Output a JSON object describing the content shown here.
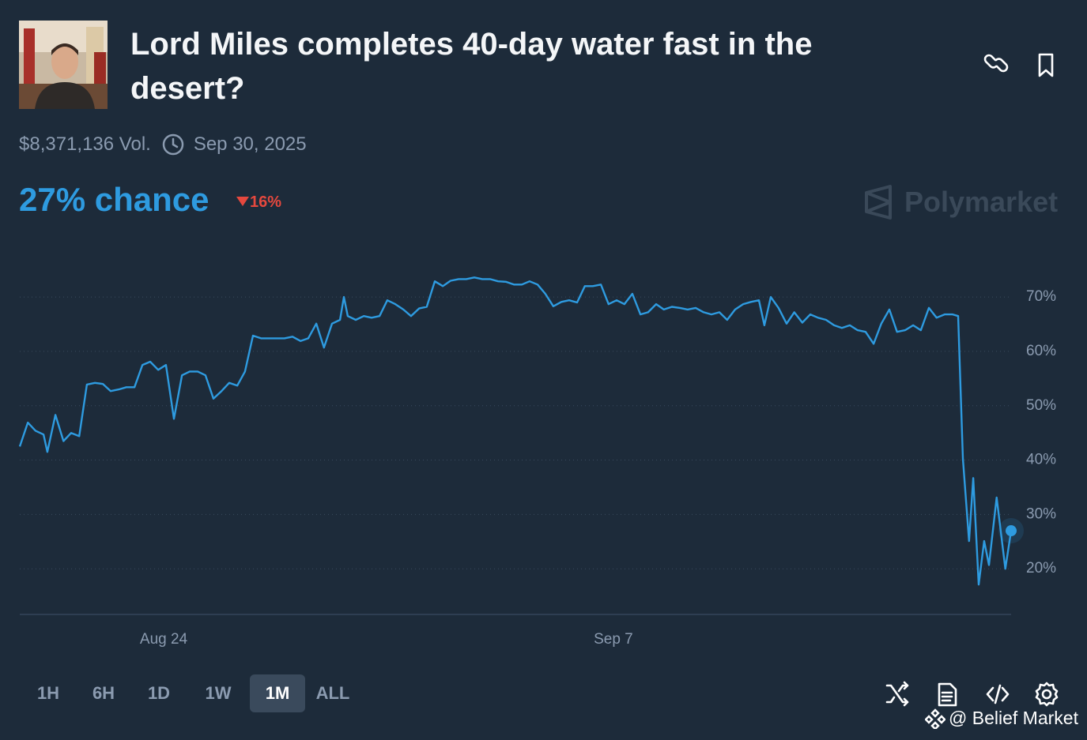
{
  "header": {
    "title": "Lord Miles completes 40-day water fast in the desert?",
    "volume": "$8,371,136 Vol.",
    "date": "Sep 30, 2025",
    "chance": "27% chance",
    "change": "16%",
    "brand": "Polymarket"
  },
  "chart_data": {
    "type": "line",
    "color": "#2e9be0",
    "grid": true,
    "x": [
      -4.48,
      -4.23,
      -3.99,
      -3.74,
      -3.62,
      -3.37,
      -3.12,
      -2.88,
      -2.63,
      -2.39,
      -2.14,
      -1.89,
      -1.65,
      -1.4,
      -1.16,
      -0.91,
      -0.66,
      -0.42,
      -0.17,
      0.07,
      0.32,
      0.57,
      0.81,
      1.06,
      1.3,
      1.55,
      1.8,
      2.04,
      2.29,
      2.53,
      2.78,
      3.03,
      3.27,
      3.52,
      3.76,
      4.01,
      4.26,
      4.5,
      4.75,
      4.99,
      5.24,
      5.49,
      5.61,
      5.73,
      5.98,
      6.23,
      6.47,
      6.72,
      6.96,
      7.21,
      7.46,
      7.7,
      7.95,
      8.19,
      8.44,
      8.69,
      8.93,
      9.18,
      9.42,
      9.67,
      9.92,
      10.16,
      10.41,
      10.65,
      10.9,
      11.15,
      11.39,
      11.64,
      11.88,
      12.13,
      12.38,
      12.62,
      12.87,
      13.11,
      13.36,
      13.61,
      13.85,
      14.1,
      14.34,
      14.59,
      14.84,
      15.08,
      15.33,
      15.57,
      15.82,
      16.07,
      16.31,
      16.56,
      16.81,
      17.05,
      17.3,
      17.54,
      17.79,
      18.04,
      18.28,
      18.53,
      18.7,
      18.9,
      19.14,
      19.39,
      19.63,
      19.88,
      20.13,
      20.37,
      20.62,
      20.87,
      21.11,
      21.36,
      21.6,
      21.85,
      22.1,
      22.34,
      22.59,
      22.83,
      23.08,
      23.33,
      23.57,
      23.82,
      24.06,
      24.31,
      24.56,
      24.73,
      24.88,
      25.07,
      25.2,
      25.37,
      25.54,
      25.69,
      25.93,
      26.2,
      26.38
    ],
    "values": [
      42.5,
      46.9,
      45.4,
      44.7,
      41.5,
      48.3,
      43.5,
      45,
      44.4,
      53.9,
      54.2,
      54,
      52.7,
      53,
      53.4,
      53.4,
      57.5,
      58.1,
      56.6,
      57.5,
      47.6,
      55.6,
      56.3,
      56.3,
      55.6,
      51.3,
      52.7,
      54.2,
      53.7,
      56.3,
      62.9,
      62.4,
      62.4,
      62.4,
      62.4,
      62.7,
      61.9,
      62.4,
      65.1,
      60.7,
      65.1,
      65.8,
      70,
      66.5,
      65.8,
      66.5,
      66.2,
      66.5,
      69.4,
      68.7,
      67.7,
      66.5,
      67.9,
      68.2,
      72.9,
      72,
      73,
      73.3,
      73.3,
      73.6,
      73.3,
      73.3,
      72.9,
      72.8,
      72.3,
      72.3,
      72.9,
      72.3,
      70.6,
      68.3,
      69.1,
      69.4,
      69,
      72,
      72,
      72.3,
      68.7,
      69.4,
      68.7,
      70.6,
      66.8,
      67.2,
      68.7,
      67.7,
      68.2,
      68,
      67.7,
      68,
      67.2,
      66.8,
      67.2,
      65.8,
      67.7,
      68.7,
      69.1,
      69.4,
      64.8,
      70,
      68,
      65.1,
      67.2,
      65.3,
      66.8,
      66.2,
      65.8,
      64.8,
      64.3,
      64.8,
      63.9,
      63.6,
      61.4,
      65.1,
      67.7,
      63.6,
      63.9,
      64.8,
      63.9,
      68,
      66.2,
      66.8,
      66.8,
      66.5,
      40.3,
      25.1,
      36.7,
      17.1,
      25.1,
      20.7,
      33.1,
      20,
      27
    ],
    "xlim": [
      -4.48,
      26.38
    ],
    "ylim": [
      11.6,
      76.7
    ],
    "xticks": [
      {
        "value": 0,
        "label": "Aug 24"
      },
      {
        "value": 14,
        "label": "Sep 7"
      }
    ],
    "yticks": [
      {
        "value": 20,
        "label": "20%"
      },
      {
        "value": 30,
        "label": "30%"
      },
      {
        "value": 40,
        "label": "40%"
      },
      {
        "value": 50,
        "label": "50%"
      },
      {
        "value": 60,
        "label": "60%"
      },
      {
        "value": 70,
        "label": "70%"
      }
    ]
  },
  "controls": {
    "ranges": [
      "1H",
      "6H",
      "1D",
      "1W",
      "1M",
      "ALL"
    ],
    "selected": "1M"
  },
  "watermark": "@ Belief Market"
}
